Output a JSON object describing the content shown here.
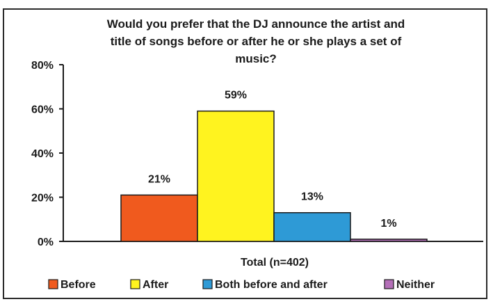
{
  "chart_data": {
    "type": "bar",
    "title_lines": [
      "Would you prefer that the DJ announce the artist and",
      "title of songs before or after he or she plays a set of",
      "music?"
    ],
    "xlabel": "Total (n=402)",
    "ylim": [
      0,
      80
    ],
    "yticks": [
      "0%",
      "20%",
      "40%",
      "60%",
      "80%"
    ],
    "ytick_values": [
      0,
      20,
      40,
      60,
      80
    ],
    "grid": false,
    "legend_position": "bottom",
    "series": [
      {
        "name": "Before",
        "value": 21,
        "label": "21%",
        "color": "#f05a1e"
      },
      {
        "name": "After",
        "value": 59,
        "label": "59%",
        "color": "#fff31f"
      },
      {
        "name": "Both before and after",
        "value": 13,
        "label": "13%",
        "color": "#2e9ad6"
      },
      {
        "name": "Neither",
        "value": 1,
        "label": "1%",
        "color": "#b46fb8"
      }
    ]
  }
}
